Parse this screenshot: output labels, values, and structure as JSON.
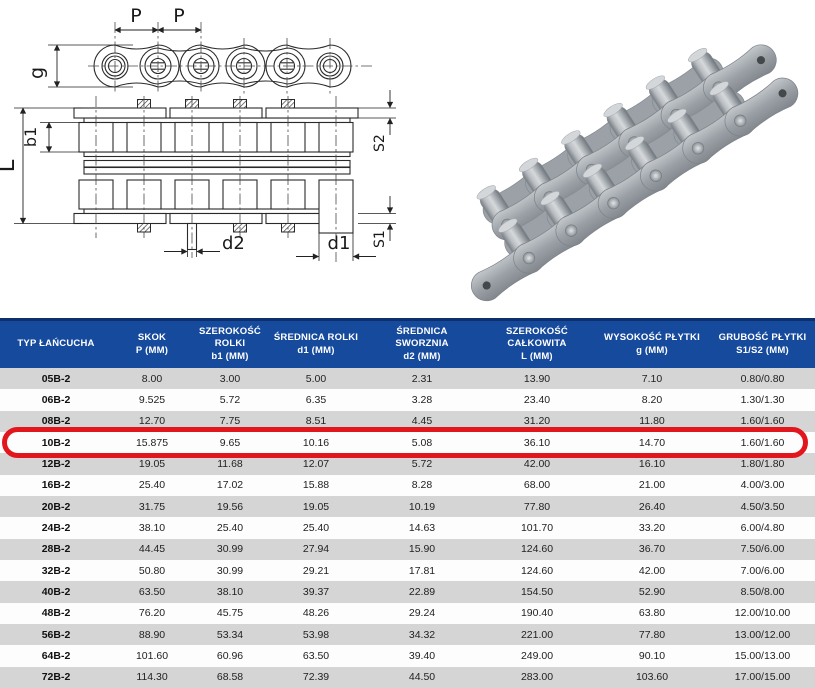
{
  "diagram": {
    "labels": {
      "p1": "P",
      "p2": "P",
      "g": "g",
      "b1": "b1",
      "L": "L",
      "s2": "S2",
      "s1": "S1",
      "d2": "d2",
      "d1": "d1"
    }
  },
  "table": {
    "columns": [
      {
        "id": "type",
        "lines": [
          "TYP ŁAŃCUCHA"
        ]
      },
      {
        "id": "pitch",
        "lines": [
          "SKOK",
          "P (MM)"
        ]
      },
      {
        "id": "roller_width",
        "lines": [
          "SZEROKOŚĆ",
          "ROLKI",
          "b1 (MM)"
        ]
      },
      {
        "id": "roller_diameter",
        "lines": [
          "ŚREDNICA ROLKI",
          "d1 (MM)"
        ]
      },
      {
        "id": "pin_diameter",
        "lines": [
          "ŚREDNICA",
          "SWORZNIA",
          "d2 (MM)"
        ]
      },
      {
        "id": "overall_width",
        "lines": [
          "SZEROKOŚĆ",
          "CAŁKOWITA",
          "L (MM)"
        ]
      },
      {
        "id": "plate_height",
        "lines": [
          "WYSOKOŚĆ PŁYTKI",
          "g (MM)"
        ]
      },
      {
        "id": "plate_thickness",
        "lines": [
          "GRUBOŚĆ PŁYTKI",
          "S1/S2 (MM)"
        ]
      }
    ],
    "rows": [
      [
        "05B-2",
        "8.00",
        "3.00",
        "5.00",
        "2.31",
        "13.90",
        "7.10",
        "0.80/0.80"
      ],
      [
        "06B-2",
        "9.525",
        "5.72",
        "6.35",
        "3.28",
        "23.40",
        "8.20",
        "1.30/1.30"
      ],
      [
        "08B-2",
        "12.70",
        "7.75",
        "8.51",
        "4.45",
        "31.20",
        "11.80",
        "1.60/1.60"
      ],
      [
        "10B-2",
        "15.875",
        "9.65",
        "10.16",
        "5.08",
        "36.10",
        "14.70",
        "1.60/1.60"
      ],
      [
        "12B-2",
        "19.05",
        "11.68",
        "12.07",
        "5.72",
        "42.00",
        "16.10",
        "1.80/1.80"
      ],
      [
        "16B-2",
        "25.40",
        "17.02",
        "15.88",
        "8.28",
        "68.00",
        "21.00",
        "4.00/3.00"
      ],
      [
        "20B-2",
        "31.75",
        "19.56",
        "19.05",
        "10.19",
        "77.80",
        "26.40",
        "4.50/3.50"
      ],
      [
        "24B-2",
        "38.10",
        "25.40",
        "25.40",
        "14.63",
        "101.70",
        "33.20",
        "6.00/4.80"
      ],
      [
        "28B-2",
        "44.45",
        "30.99",
        "27.94",
        "15.90",
        "124.60",
        "36.70",
        "7.50/6.00"
      ],
      [
        "32B-2",
        "50.80",
        "30.99",
        "29.21",
        "17.81",
        "124.60",
        "42.00",
        "7.00/6.00"
      ],
      [
        "40B-2",
        "63.50",
        "38.10",
        "39.37",
        "22.89",
        "154.50",
        "52.90",
        "8.50/8.00"
      ],
      [
        "48B-2",
        "76.20",
        "45.75",
        "48.26",
        "29.24",
        "190.40",
        "63.80",
        "12.00/10.00"
      ],
      [
        "56B-2",
        "88.90",
        "53.34",
        "53.98",
        "34.32",
        "221.00",
        "77.80",
        "13.00/12.00"
      ],
      [
        "64B-2",
        "101.60",
        "60.96",
        "63.50",
        "39.40",
        "249.00",
        "90.10",
        "15.00/13.00"
      ],
      [
        "72B-2",
        "114.30",
        "68.58",
        "72.39",
        "44.50",
        "283.00",
        "103.60",
        "17.00/15.00"
      ]
    ],
    "highlight_type": "10B-2",
    "colors": {
      "header_blue": "#164a9d",
      "header_border": "#0d2f6e",
      "row_gray": "#d5d5d6",
      "row_white": "#fdfdfd",
      "highlight_red": "#e2171e"
    }
  }
}
